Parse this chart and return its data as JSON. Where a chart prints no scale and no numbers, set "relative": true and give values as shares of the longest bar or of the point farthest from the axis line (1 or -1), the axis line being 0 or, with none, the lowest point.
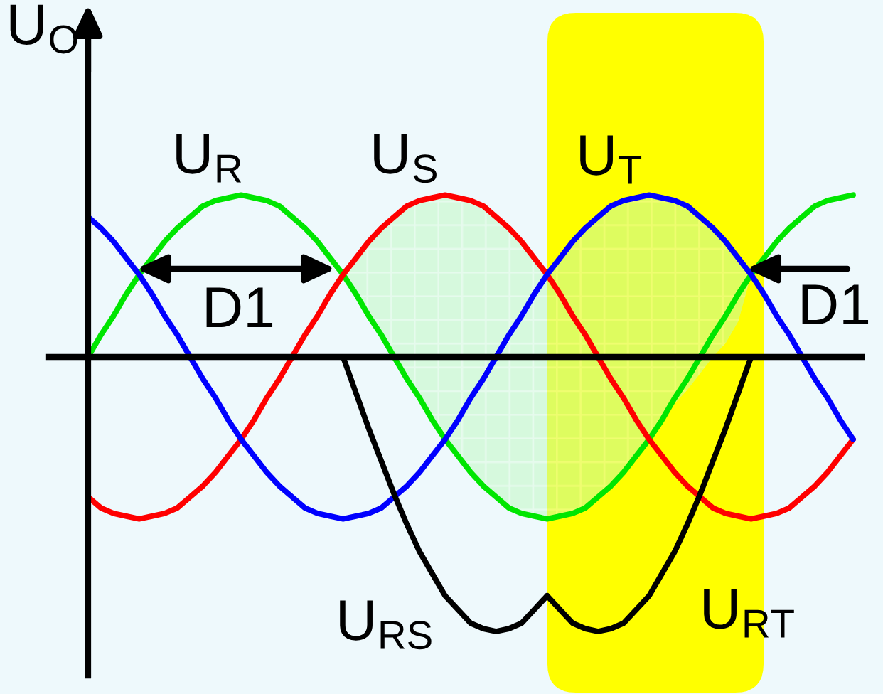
{
  "chart_data": {
    "type": "line",
    "relative": true,
    "ylabel": "U$_{O}$",
    "categories": [
      null,
      null,
      null,
      null,
      null,
      null,
      null,
      null,
      null,
      null,
      null,
      null,
      null,
      null,
      null,
      null,
      null,
      null,
      null,
      null,
      null,
      null,
      null,
      null,
      null,
      null,
      null,
      null,
      null,
      null,
      null,
      null,
      null,
      null,
      null,
      null,
      null,
      null,
      null,
      null,
      null,
      null,
      null,
      null,
      null,
      null,
      null,
      null,
      null,
      null,
      null,
      null,
      null,
      null,
      null,
      null,
      null,
      null,
      null,
      null,
      null
    ],
    "series": [
      {
        "name": "U$_{R}$",
        "color": "#00e600",
        "values": [
          0,
          0.08,
          0.15,
          0.23,
          0.3,
          0.36,
          0.42,
          0.47,
          0.51,
          0.55,
          0.57,
          0.58,
          0.59,
          0.58,
          0.57,
          0.55,
          0.51,
          0.47,
          0.42,
          0.36,
          0.3,
          0.23,
          0.15,
          0.08,
          0,
          -0.08,
          -0.15,
          -0.23,
          -0.3,
          -0.36,
          -0.42,
          -0.47,
          -0.51,
          -0.55,
          -0.57,
          -0.58,
          -0.59,
          -0.58,
          -0.57,
          -0.55,
          -0.51,
          -0.47,
          -0.42,
          -0.36,
          -0.3,
          -0.23,
          -0.15,
          -0.08,
          0,
          0.08,
          0.15,
          0.23,
          0.3,
          0.36,
          0.42,
          0.47,
          0.51,
          0.55,
          0.57,
          0.58,
          0.59
        ],
        "lower": [
          null,
          null,
          null,
          null,
          null,
          null,
          null,
          null,
          null,
          null,
          null,
          null,
          null,
          null,
          null,
          null,
          null,
          null,
          null,
          null,
          0.3,
          0.23,
          0.15,
          0.08,
          0,
          -0.08,
          -0.15,
          -0.23,
          -0.3,
          -0.36,
          -0.42,
          -0.47,
          -0.51,
          -0.55,
          -0.57,
          -0.58,
          -0.59,
          -0.58,
          -0.57,
          -0.55,
          -0.51,
          -0.47,
          -0.42,
          -0.36,
          -0.3,
          -0.23,
          -0.17,
          -0.12,
          -0.06,
          0,
          0.05,
          0.13,
          0.3,
          null,
          null,
          null,
          null,
          null,
          null,
          null,
          null
        ],
        "upper": [
          null,
          null,
          null,
          null,
          null,
          null,
          null,
          null,
          null,
          null,
          null,
          null,
          null,
          null,
          null,
          null,
          null,
          null,
          null,
          null,
          0.3,
          0.36,
          0.42,
          0.47,
          0.51,
          0.55,
          0.57,
          0.58,
          0.59,
          0.58,
          0.57,
          0.55,
          0.51,
          0.47,
          0.42,
          0.36,
          0.3,
          0.36,
          0.42,
          0.47,
          0.51,
          0.55,
          0.57,
          0.58,
          0.59,
          0.58,
          0.57,
          0.55,
          0.51,
          0.47,
          0.42,
          0.36,
          0.3,
          null,
          null,
          null,
          null,
          null,
          null,
          null,
          null
        ]
      },
      {
        "name": "U$_{S}$",
        "color": "#ff0000",
        "values": [
          -0.51,
          -0.55,
          -0.57,
          -0.58,
          -0.59,
          -0.58,
          -0.57,
          -0.55,
          -0.51,
          -0.47,
          -0.42,
          -0.36,
          -0.3,
          -0.23,
          -0.15,
          -0.08,
          0,
          0.08,
          0.15,
          0.23,
          0.3,
          0.36,
          0.42,
          0.47,
          0.51,
          0.55,
          0.57,
          0.58,
          0.59,
          0.58,
          0.57,
          0.55,
          0.51,
          0.47,
          0.42,
          0.36,
          0.3,
          0.23,
          0.15,
          0.08,
          0,
          -0.08,
          -0.15,
          -0.23,
          -0.3,
          -0.36,
          -0.42,
          -0.47,
          -0.51,
          -0.55,
          -0.57,
          -0.58,
          -0.59,
          -0.58,
          -0.57,
          -0.55,
          -0.51,
          -0.47,
          -0.42,
          -0.36,
          -0.3
        ]
      },
      {
        "name": "U$_{T}$",
        "color": "#0000ff",
        "values": [
          0.51,
          0.47,
          0.42,
          0.36,
          0.3,
          0.23,
          0.15,
          0.08,
          0,
          -0.08,
          -0.15,
          -0.23,
          -0.3,
          -0.36,
          -0.42,
          -0.47,
          -0.51,
          -0.55,
          -0.57,
          -0.58,
          -0.59,
          -0.58,
          -0.57,
          -0.55,
          -0.51,
          -0.47,
          -0.42,
          -0.36,
          -0.3,
          -0.23,
          -0.15,
          -0.08,
          0,
          0.08,
          0.15,
          0.23,
          0.3,
          0.36,
          0.42,
          0.47,
          0.51,
          0.55,
          0.57,
          0.58,
          0.59,
          0.58,
          0.57,
          0.55,
          0.51,
          0.47,
          0.42,
          0.36,
          0.3,
          0.23,
          0.15,
          0.08,
          0,
          -0.08,
          -0.15,
          -0.23,
          -0.3
        ]
      },
      {
        "name": "U$_{RS}$",
        "color": "#000000",
        "values": [
          null,
          null,
          null,
          null,
          null,
          null,
          null,
          null,
          null,
          null,
          null,
          null,
          null,
          null,
          null,
          null,
          null,
          null,
          null,
          null,
          0,
          -0.13,
          -0.26,
          -0.38,
          -0.5,
          -0.61,
          -0.71,
          -0.79,
          -0.87,
          -0.92,
          -0.97,
          -0.99,
          -1,
          -0.99,
          -0.97,
          -0.92,
          -0.87,
          null,
          null,
          null,
          null,
          null,
          null,
          null,
          null,
          null,
          null,
          null,
          null,
          null,
          null,
          null,
          null,
          null,
          null,
          null,
          null,
          null,
          null,
          null,
          null
        ]
      },
      {
        "name": "U$_{RT}$",
        "color": "#000000",
        "values": [
          null,
          null,
          null,
          null,
          null,
          null,
          null,
          null,
          null,
          null,
          null,
          null,
          null,
          null,
          null,
          null,
          null,
          null,
          null,
          null,
          null,
          null,
          null,
          null,
          null,
          null,
          null,
          null,
          null,
          null,
          null,
          null,
          null,
          null,
          null,
          null,
          -0.87,
          -0.92,
          -0.97,
          -0.99,
          -1,
          -0.99,
          -0.97,
          -0.92,
          -0.87,
          -0.79,
          -0.71,
          -0.61,
          -0.5,
          -0.38,
          -0.26,
          -0.13,
          0,
          null,
          null,
          null,
          null,
          null,
          null,
          null,
          null
        ]
      }
    ],
    "annotations": [
      "D1",
      "D1"
    ]
  }
}
